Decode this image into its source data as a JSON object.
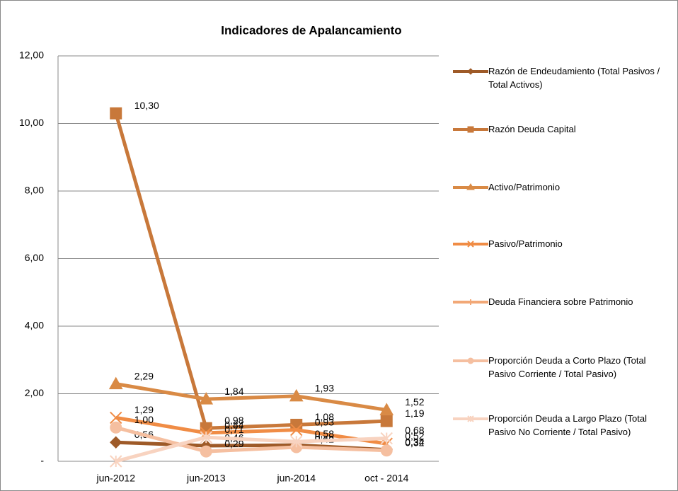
{
  "chart_data": {
    "type": "line",
    "title": "Indicadores de Apalancamiento",
    "categories": [
      "jun-2012",
      "jun-2013",
      "jun-2014",
      "oct - 2014"
    ],
    "ylim": [
      0,
      12
    ],
    "yticks": [
      {
        "value": 0,
        "label": "-"
      },
      {
        "value": 2,
        "label": "2,00"
      },
      {
        "value": 4,
        "label": "4,00"
      },
      {
        "value": 6,
        "label": "6,00"
      },
      {
        "value": 8,
        "label": "8,00"
      },
      {
        "value": 10,
        "label": "10,00"
      },
      {
        "value": 12,
        "label": "12,00"
      }
    ],
    "grid": true,
    "legend": "right",
    "series": [
      {
        "name": "Razón de Endeudamiento (Total Pasivos / Total Activos)",
        "color": "#9e5a28",
        "marker": "diamond",
        "values": [
          0.56,
          0.46,
          0.48,
          0.34
        ],
        "value_labels": [
          "0,56",
          "0,46",
          "0,48",
          "0,34"
        ]
      },
      {
        "name": "Razón Deuda Capital",
        "color": "#c8783a",
        "marker": "square",
        "values": [
          10.3,
          0.98,
          1.08,
          1.19
        ],
        "value_labels": [
          "10,30",
          "0,98",
          "1,08",
          "1,19"
        ]
      },
      {
        "name": "Activo/Patrimonio",
        "color": "#d98a45",
        "marker": "triangle",
        "values": [
          2.29,
          1.84,
          1.93,
          1.52
        ],
        "value_labels": [
          "2,29",
          "1,84",
          "1,93",
          "1,52"
        ]
      },
      {
        "name": "Pasivo/Patrimonio",
        "color": "#f08c45",
        "marker": "x",
        "values": [
          1.29,
          0.84,
          0.93,
          0.52
        ],
        "value_labels": [
          "1,29",
          "0,84",
          "0,93",
          "0,52"
        ]
      },
      {
        "name": "Deuda Financiera sobre Patrimonio",
        "color": "#f2a877",
        "marker": "plus",
        "values": [
          null,
          null,
          null,
          null
        ]
      },
      {
        "name": "Proporción Deuda a Corto Plazo (Total Pasivo Corriente / Total Pasivo)",
        "color": "#f5bfa0",
        "marker": "circle",
        "values": [
          1.0,
          0.29,
          0.42,
          0.32
        ],
        "value_labels": [
          "1,00",
          "0,29",
          "0,42",
          "0,32"
        ]
      },
      {
        "name": "Proporción Deuda a Largo Plazo (Total Pasivo No Corriente / Total Pasivo)",
        "color": "#f8d3c0",
        "marker": "star",
        "values": [
          0,
          0.71,
          0.58,
          0.68
        ],
        "value_labels": [
          null,
          "0,71",
          "0,58",
          "0,68"
        ]
      }
    ]
  }
}
